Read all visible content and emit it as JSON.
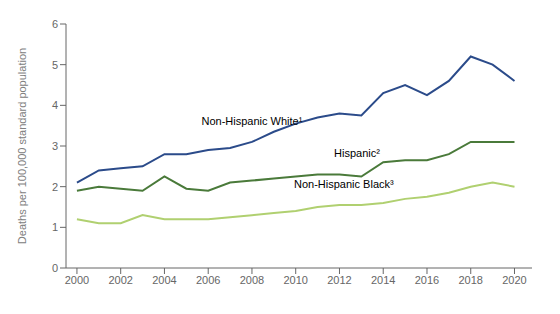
{
  "chart_data": {
    "type": "line",
    "x": [
      2000,
      2001,
      2002,
      2003,
      2004,
      2005,
      2006,
      2007,
      2008,
      2009,
      2010,
      2011,
      2012,
      2013,
      2014,
      2015,
      2016,
      2017,
      2018,
      2019,
      2020
    ],
    "series": [
      {
        "name": "Non-Hispanic White¹",
        "color": "#2b4b8a",
        "values": [
          2.1,
          2.4,
          2.45,
          2.5,
          2.8,
          2.8,
          2.9,
          2.95,
          3.1,
          3.35,
          3.55,
          3.7,
          3.8,
          3.75,
          4.3,
          4.5,
          4.25,
          4.6,
          5.2,
          5.0,
          4.6
        ]
      },
      {
        "name": "Hispanic²",
        "color": "#4a7a3a",
        "values": [
          1.9,
          2.0,
          1.95,
          1.9,
          2.25,
          1.95,
          1.9,
          2.1,
          2.15,
          2.2,
          2.25,
          2.3,
          2.3,
          2.25,
          2.6,
          2.65,
          2.65,
          2.8,
          3.1,
          3.1,
          3.1
        ]
      },
      {
        "name": "Non-Hispanic Black³",
        "color": "#b0d070",
        "values": [
          1.2,
          1.1,
          1.1,
          1.3,
          1.2,
          1.2,
          1.2,
          1.25,
          1.3,
          1.35,
          1.4,
          1.5,
          1.55,
          1.55,
          1.6,
          1.7,
          1.75,
          1.85,
          2.0,
          2.1,
          2.0
        ]
      }
    ],
    "ylabel": "Deaths per 100,000 standard population",
    "xlim": [
      1999.5,
      2020.8
    ],
    "xticks": [
      2000,
      2002,
      2004,
      2006,
      2008,
      2010,
      2012,
      2014,
      2016,
      2018,
      2020
    ],
    "ylim": [
      0,
      6
    ],
    "yticks": [
      0,
      1,
      2,
      3,
      4,
      5,
      6
    ],
    "grid": false,
    "annotations": [
      {
        "text": "Non-Hispanic White¹",
        "x": 2008.0,
        "y": 3.38
      },
      {
        "text": "Hispanic²",
        "x": 2012.8,
        "y": 2.58
      },
      {
        "text": "Non-Hispanic Black³",
        "x": 2012.2,
        "y": 1.82
      }
    ]
  }
}
